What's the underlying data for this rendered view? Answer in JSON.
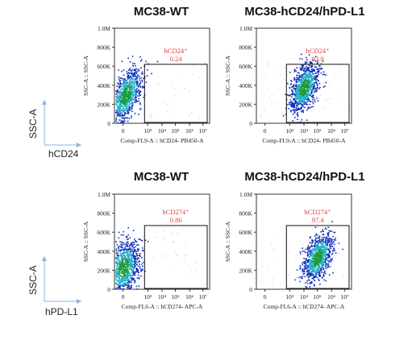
{
  "panels": [
    {
      "title": "MC38-WT",
      "ylabel": "SSC-A :: SSC-A",
      "xlabel": "Comp-FL9-A :: hCD24- PB450-A",
      "gate_label": "hCD24⁺",
      "gate_value": "0.24",
      "y_ticks": [
        "0",
        "200K",
        "400K",
        "600K",
        "800K",
        "1.0M"
      ],
      "x_ticks": [
        "0",
        "10³",
        "10⁴",
        "10⁵",
        "10⁶",
        "10⁷"
      ],
      "population_center": [
        0.1,
        300
      ],
      "gate_x_range": [
        "10³",
        "10⁷"
      ],
      "gate_y_range": [
        0,
        620
      ]
    },
    {
      "title": "MC38-hCD24/hPD-L1",
      "ylabel": "SSC-A :: SSC-A",
      "xlabel": "Comp-FL9-A :: hCD24- PB450-A",
      "gate_label": "hCD24⁺",
      "gate_value": "93.0",
      "y_ticks": [
        "0",
        "200K",
        "400K",
        "600K",
        "800K",
        "1.0M"
      ],
      "x_ticks": [
        "0",
        "10³",
        "10⁴",
        "10⁵",
        "10⁶",
        "10⁷"
      ],
      "population_center": [
        "10⁴",
        380
      ],
      "gate_x_range": [
        "10³",
        "10⁷"
      ],
      "gate_y_range": [
        0,
        620
      ]
    },
    {
      "title": "MC38-WT",
      "ylabel": "SSC-A :: SSC-A",
      "xlabel": "Comp-FL6-A :: hCD274- APC-A",
      "gate_label": "hCD274⁺",
      "gate_value": "0.86",
      "y_ticks": [
        "0",
        "200K",
        "400K",
        "600K",
        "800K",
        "1.0M"
      ],
      "x_ticks": [
        "0",
        "10³",
        "10⁴",
        "10⁵",
        "10⁶",
        "10⁷"
      ],
      "population_center": [
        0,
        230
      ],
      "gate_x_range": [
        "10³",
        "10⁷"
      ],
      "gate_y_range": [
        0,
        670
      ]
    },
    {
      "title": "MC38-hCD24/hPD-L1",
      "ylabel": "SSC-A :: SSC-A",
      "xlabel": "Comp-FL6-A :: hCD274- APC-A",
      "gate_label": "hCD274⁺",
      "gate_value": "97.4",
      "y_ticks": [
        "0",
        "200K",
        "400K",
        "600K",
        "800K",
        "1.0M"
      ],
      "x_ticks": [
        "0",
        "10³",
        "10⁴",
        "10⁵",
        "10⁶",
        "10⁷"
      ],
      "population_center": [
        "10⁵",
        340
      ],
      "gate_x_range": [
        "10³",
        "10⁷"
      ],
      "gate_y_range": [
        0,
        670
      ]
    }
  ],
  "row_axes": [
    {
      "y": "SSC-A",
      "x": "hCD24"
    },
    {
      "y": "SSC-A",
      "x": "hPD-L1"
    }
  ],
  "colors": {
    "gate_text": "#e8383d",
    "density_high": "#1a9a3a",
    "density_mid": "#22b0c8",
    "density_low": "#1030b8"
  },
  "chart_data": [
    {
      "type": "scatter",
      "title": "MC38-WT",
      "xlabel": "Comp-FL9-A :: hCD24- PB450-A",
      "ylabel": "SSC-A :: SSC-A",
      "x_scale": "biexponential",
      "ylim": [
        0,
        1000000
      ],
      "gate": {
        "name": "hCD24⁺",
        "percent": 0.24
      }
    },
    {
      "type": "scatter",
      "title": "MC38-hCD24/hPD-L1",
      "xlabel": "Comp-FL9-A :: hCD24- PB450-A",
      "ylabel": "SSC-A :: SSC-A",
      "x_scale": "biexponential",
      "ylim": [
        0,
        1000000
      ],
      "gate": {
        "name": "hCD24⁺",
        "percent": 93.0
      }
    },
    {
      "type": "scatter",
      "title": "MC38-WT",
      "xlabel": "Comp-FL6-A :: hCD274- APC-A",
      "ylabel": "SSC-A :: SSC-A",
      "x_scale": "biexponential",
      "ylim": [
        0,
        1000000
      ],
      "gate": {
        "name": "hCD274⁺",
        "percent": 0.86
      }
    },
    {
      "type": "scatter",
      "title": "MC38-hCD24/hPD-L1",
      "xlabel": "Comp-FL6-A :: hCD274- APC-A",
      "ylabel": "SSC-A :: SSC-A",
      "x_scale": "biexponential",
      "ylim": [
        0,
        1000000
      ],
      "gate": {
        "name": "hCD274⁺",
        "percent": 97.4
      }
    }
  ]
}
